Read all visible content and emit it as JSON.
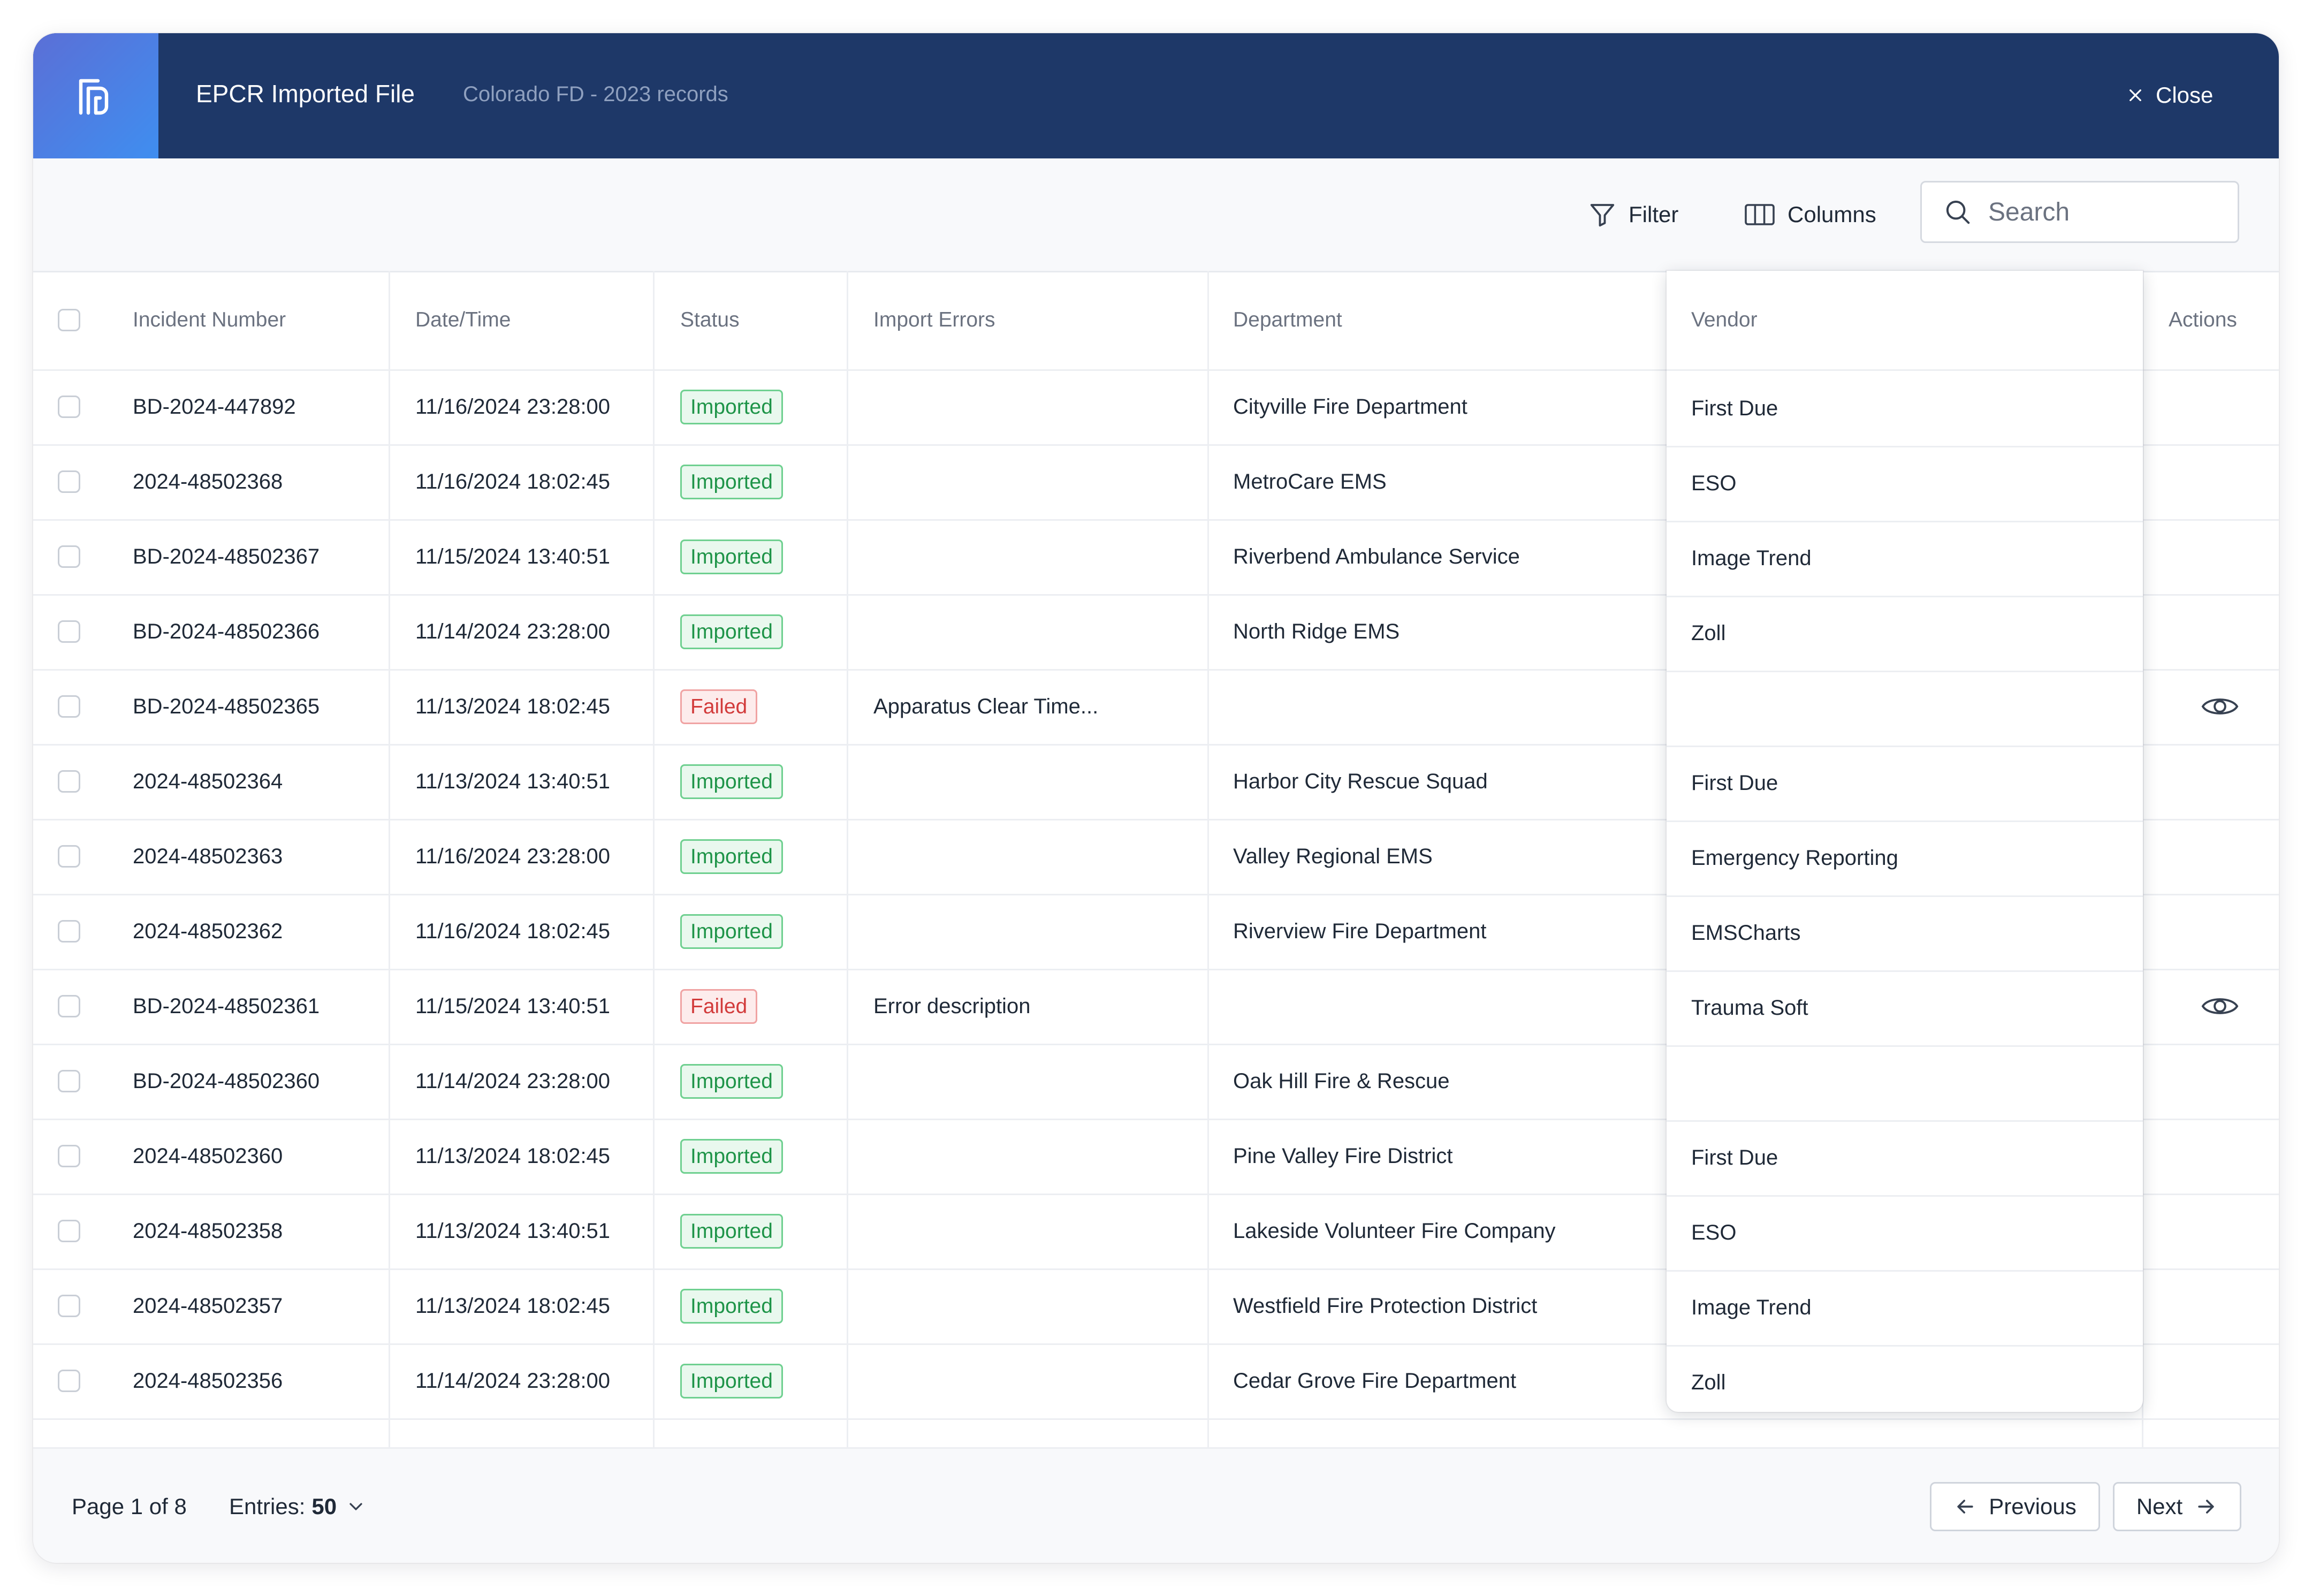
{
  "header": {
    "title": "EPCR Imported File",
    "subtitle": "Colorado FD - 2023 records",
    "close_label": "Close"
  },
  "toolbar": {
    "filter_label": "Filter",
    "columns_label": "Columns",
    "search_placeholder": "Search"
  },
  "table": {
    "columns": {
      "incident_number": "Incident Number",
      "datetime": "Date/Time",
      "status": "Status",
      "import_errors": "Import Errors",
      "department": "Department",
      "vendor": "Vendor",
      "actions": "Actions"
    },
    "rows": [
      {
        "incident": "BD-2024-447892",
        "datetime": "11/16/2024 23:28:00",
        "status": "Imported",
        "status_type": "imported",
        "error": "",
        "department": "Cityville Fire Department",
        "vendor": "First Due",
        "action": false
      },
      {
        "incident": "2024-48502368",
        "datetime": "11/16/2024 18:02:45",
        "status": "Imported",
        "status_type": "imported",
        "error": "",
        "department": "MetroCare EMS",
        "vendor": "ESO",
        "action": false
      },
      {
        "incident": "BD-2024-48502367",
        "datetime": "11/15/2024 13:40:51",
        "status": "Imported",
        "status_type": "imported",
        "error": "",
        "department": "Riverbend Ambulance Service",
        "vendor": "Image Trend",
        "action": false
      },
      {
        "incident": "BD-2024-48502366",
        "datetime": "11/14/2024 23:28:00",
        "status": "Imported",
        "status_type": "imported",
        "error": "",
        "department": "North Ridge EMS",
        "vendor": "Zoll",
        "action": false
      },
      {
        "incident": "BD-2024-48502365",
        "datetime": "11/13/2024 18:02:45",
        "status": "Failed",
        "status_type": "failed",
        "error": "Apparatus Clear Time...",
        "department": "",
        "vendor": "",
        "action": true
      },
      {
        "incident": "2024-48502364",
        "datetime": "11/13/2024 13:40:51",
        "status": "Imported",
        "status_type": "imported",
        "error": "",
        "department": "Harbor City Rescue Squad",
        "vendor": "First Due",
        "action": false
      },
      {
        "incident": "2024-48502363",
        "datetime": "11/16/2024 23:28:00",
        "status": "Imported",
        "status_type": "imported",
        "error": "",
        "department": "Valley Regional EMS",
        "vendor": "Emergency Reporting",
        "action": false
      },
      {
        "incident": "2024-48502362",
        "datetime": "11/16/2024 18:02:45",
        "status": "Imported",
        "status_type": "imported",
        "error": "",
        "department": "Riverview Fire Department",
        "vendor": "EMSCharts",
        "action": false
      },
      {
        "incident": "BD-2024-48502361",
        "datetime": "11/15/2024 13:40:51",
        "status": "Failed",
        "status_type": "failed",
        "error": "Error description",
        "department": "",
        "vendor": "Trauma Soft",
        "action": true
      },
      {
        "incident": "BD-2024-48502360",
        "datetime": "11/14/2024 23:28:00",
        "status": "Imported",
        "status_type": "imported",
        "error": "",
        "department": "Oak Hill Fire & Rescue",
        "vendor": "",
        "action": false
      },
      {
        "incident": "2024-48502360",
        "datetime": "11/13/2024 18:02:45",
        "status": "Imported",
        "status_type": "imported",
        "error": "",
        "department": "Pine Valley Fire District",
        "vendor": "First Due",
        "action": false
      },
      {
        "incident": "2024-48502358",
        "datetime": "11/13/2024 13:40:51",
        "status": "Imported",
        "status_type": "imported",
        "error": "",
        "department": "Lakeside Volunteer Fire Company",
        "vendor": "ESO",
        "action": false
      },
      {
        "incident": "2024-48502357",
        "datetime": "11/13/2024 18:02:45",
        "status": "Imported",
        "status_type": "imported",
        "error": "",
        "department": "Westfield Fire Protection District",
        "vendor": "Image Trend",
        "action": false
      },
      {
        "incident": "2024-48502356",
        "datetime": "11/14/2024 23:28:00",
        "status": "Imported",
        "status_type": "imported",
        "error": "",
        "department": "Cedar Grove Fire Department",
        "vendor": "Zoll",
        "action": false
      }
    ]
  },
  "footer": {
    "page_info": "Page 1 of 8",
    "entries_label": "Entries:",
    "entries_value": "50",
    "previous_label": "Previous",
    "next_label": "Next"
  },
  "colors": {
    "header_bg": "#1e3868",
    "logo_gradient_start": "#5b6fd6",
    "logo_gradient_end": "#3f8ef0",
    "imported": "#1e9448",
    "failed": "#d23b3b"
  },
  "icons": {
    "logo": "logo-icon",
    "close": "close-icon",
    "filter": "filter-icon",
    "columns": "columns-icon",
    "search": "search-icon",
    "view": "eye-icon",
    "entries_dropdown": "chevron-down-icon",
    "previous": "arrow-left-icon",
    "next": "arrow-right-icon"
  }
}
